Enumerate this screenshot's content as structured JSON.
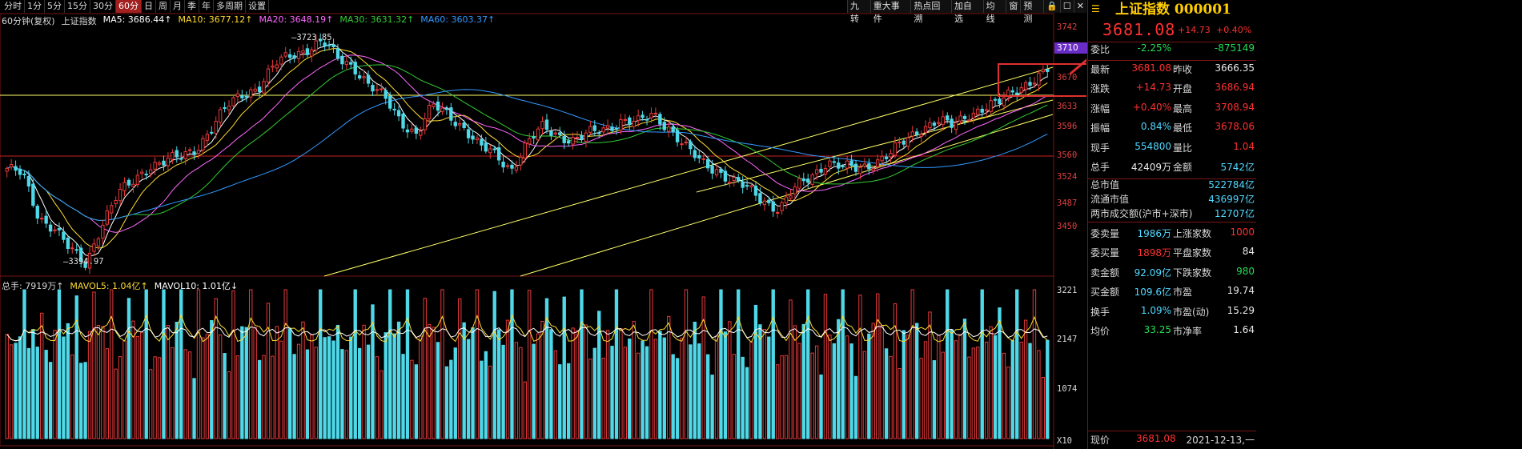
{
  "toolbar": {
    "periods": [
      "分时",
      "1分",
      "5分",
      "15分",
      "30分",
      "60分",
      "日",
      "周",
      "月",
      "季",
      "年",
      "多周期",
      "设置"
    ],
    "active_period": "60分",
    "right_items": [
      "九转",
      "重大事件",
      "热点回溯",
      "加自选",
      "均线",
      "窗",
      "预测",
      "🔒",
      "☐",
      "✕"
    ]
  },
  "ma_legend": {
    "title": "60分钟(复权)",
    "index": "上证指数",
    "ma5": "MA5: 3686.44↑",
    "ma10": "MA10: 3677.12↑",
    "ma20": "MA20: 3648.19↑",
    "ma30": "MA30: 3631.32↑",
    "ma60": "MA60: 3603.37↑"
  },
  "vol_legend": {
    "total": "总手: 7919万↑",
    "mavol5": "MAVOL5: 1.04亿↑",
    "mavol10": "MAVOL10: 1.01亿↓"
  },
  "annotations": {
    "high": "3723.85",
    "low": "3394.97"
  },
  "price_axis": [
    "3742",
    "3710",
    "3670",
    "3633",
    "3596",
    "3560",
    "3524",
    "3487",
    "3450"
  ],
  "volume_axis": [
    "3221",
    "2147",
    "1074",
    "X10"
  ],
  "highlight_tag": "3710",
  "colors": {
    "up": "#e8393a",
    "down": "#4fd8e8",
    "ma5": "#ffffff",
    "ma10": "#ffdd33",
    "ma20": "#ff66ff",
    "ma30": "#33cc33",
    "ma60": "#3399ff",
    "channel": "#ffff66"
  },
  "chart_data": {
    "type": "candlestick",
    "title": "上证指数 60分钟(复权)",
    "visible_high": 3723.85,
    "visible_low": 3394.97,
    "ylim": [
      3394.97,
      3742
    ],
    "close_path": [
      3540,
      3530,
      3470,
      3455,
      3420,
      3400,
      3460,
      3500,
      3520,
      3545,
      3550,
      3555,
      3570,
      3600,
      3630,
      3650,
      3660,
      3690,
      3705,
      3715,
      3723.85,
      3700,
      3690,
      3660,
      3640,
      3610,
      3590,
      3630,
      3620,
      3600,
      3570,
      3560,
      3540,
      3575,
      3600,
      3590,
      3580,
      3590,
      3600,
      3610,
      3605,
      3620,
      3600,
      3570,
      3550,
      3540,
      3520,
      3510,
      3495,
      3480,
      3510,
      3530,
      3550,
      3540,
      3540,
      3550,
      3560,
      3580,
      3600,
      3610,
      3600,
      3620,
      3630,
      3635,
      3655,
      3670,
      3681.08
    ]
  },
  "quote": {
    "name": "上证指数 000001",
    "price": "3681.08",
    "change": "+14.73",
    "change_pct": "+0.40%",
    "rows": [
      {
        "l1": "委比",
        "v1": "-2.25%",
        "c1": "green",
        "l2": "",
        "v2": "-875149",
        "c2": "green"
      },
      {
        "l1": "最新",
        "v1": "3681.08",
        "c1": "red",
        "l2": "昨收",
        "v2": "3666.35",
        "c2": "white"
      },
      {
        "l1": "涨跌",
        "v1": "+14.73",
        "c1": "red",
        "l2": "开盘",
        "v2": "3686.94",
        "c2": "red"
      },
      {
        "l1": "涨幅",
        "v1": "+0.40%",
        "c1": "red",
        "l2": "最高",
        "v2": "3708.94",
        "c2": "red"
      },
      {
        "l1": "振幅",
        "v1": "0.84%",
        "c1": "cyan",
        "l2": "最低",
        "v2": "3678.06",
        "c2": "red"
      },
      {
        "l1": "现手",
        "v1": "554800",
        "c1": "cyan",
        "l2": "量比",
        "v2": "1.04",
        "c2": "red"
      },
      {
        "l1": "总手",
        "v1": "42409万",
        "c1": "white",
        "l2": "金额",
        "v2": "5742亿",
        "c2": "cyan"
      }
    ],
    "single_rows": [
      {
        "l": "总市值",
        "v": "522784亿",
        "c": "cyan"
      },
      {
        "l": "流通市值",
        "v": "436997亿",
        "c": "cyan"
      },
      {
        "l": "两市成交额(沪市+深市)",
        "v": "12707亿",
        "c": "cyan"
      }
    ],
    "rows2": [
      {
        "l1": "委卖量",
        "v1": "1986万",
        "c1": "cyan",
        "l2": "上涨家数",
        "v2": "1000",
        "c2": "red"
      },
      {
        "l1": "委买量",
        "v1": "1898万",
        "c1": "red",
        "l2": "平盘家数",
        "v2": "84",
        "c2": "white"
      },
      {
        "l1": "卖金额",
        "v1": "92.09亿",
        "c1": "cyan",
        "l2": "下跌家数",
        "v2": "980",
        "c2": "green"
      },
      {
        "l1": "买金额",
        "v1": "109.6亿",
        "c1": "cyan",
        "l2": "市盈",
        "v2": "19.74",
        "c2": "white"
      },
      {
        "l1": "换手",
        "v1": "1.09%",
        "c1": "cyan",
        "l2": "市盈(动)",
        "v2": "15.29",
        "c2": "white"
      },
      {
        "l1": "均价",
        "v1": "33.25",
        "c1": "green",
        "l2": "市净率",
        "v2": "1.64",
        "c2": "white"
      }
    ],
    "footer_label": "现价",
    "footer_value": "3681.08",
    "footer_date": "2021-12-13,一"
  }
}
